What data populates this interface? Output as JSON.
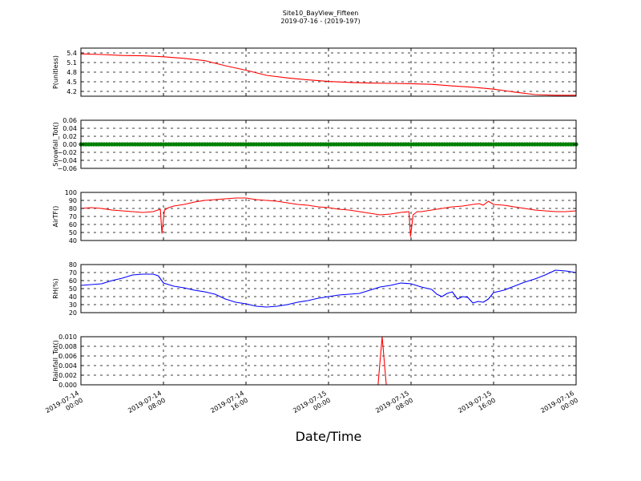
{
  "figure": {
    "title": "Site10_BayView_Fifteen",
    "subtitle": "2019-07-16 - (2019-197)",
    "xlabel": "Date/Time"
  },
  "chart_data": [
    {
      "type": "line",
      "ylabel": "P(unitless)",
      "ylim": [
        4.05,
        5.55
      ],
      "yticks": [
        "5.4",
        "5.1",
        "4.8",
        "4.5",
        "4.2"
      ],
      "ytick_values": [
        5.4,
        5.1,
        4.8,
        4.5,
        4.2
      ],
      "grid": true,
      "series": [
        {
          "color": "#ff0000",
          "x": [
            0,
            2,
            4,
            6,
            8,
            10,
            12,
            14,
            16,
            18,
            20,
            22,
            24,
            26,
            28,
            30,
            32,
            34,
            36,
            38,
            40,
            42,
            44,
            46,
            48
          ],
          "y": [
            5.37,
            5.35,
            5.32,
            5.31,
            5.28,
            5.23,
            5.16,
            5.0,
            4.86,
            4.7,
            4.62,
            4.56,
            4.51,
            4.48,
            4.46,
            4.45,
            4.44,
            4.42,
            4.37,
            4.33,
            4.27,
            4.18,
            4.1,
            4.08,
            4.08
          ]
        }
      ]
    },
    {
      "type": "scatter",
      "ylabel": "Snowfall_Tot()",
      "ylim": [
        -0.06,
        0.06
      ],
      "yticks": [
        "0.06",
        "0.04",
        "0.02",
        "0.00",
        "−0.02",
        "−0.04",
        "−0.06"
      ],
      "ytick_values": [
        0.06,
        0.04,
        0.02,
        0.0,
        -0.02,
        -0.04,
        -0.06
      ],
      "grid": true,
      "series": [
        {
          "color": "#008000",
          "x_start": 0,
          "x_end": 48,
          "x_step": 0.25,
          "value": 0.0
        }
      ]
    },
    {
      "type": "line",
      "ylabel": "AirTF()",
      "ylim": [
        40,
        100
      ],
      "yticks": [
        "100",
        "90",
        "80",
        "70",
        "60",
        "50",
        "40"
      ],
      "ytick_values": [
        100,
        90,
        80,
        70,
        60,
        50,
        40
      ],
      "grid": true,
      "series": [
        {
          "color": "#ff0000",
          "x": [
            0,
            1,
            2,
            3,
            4,
            5,
            6,
            7,
            7.7,
            7.85,
            8.1,
            8.5,
            9,
            10,
            11,
            12,
            13,
            14,
            15,
            16,
            17,
            18,
            19,
            20,
            21,
            22,
            23,
            24,
            25,
            26,
            27,
            28,
            29,
            30,
            31,
            31.8,
            31.95,
            32.2,
            32.6,
            33,
            34,
            35,
            36,
            37,
            38,
            38.6,
            39,
            39.5,
            40,
            41,
            42,
            43,
            44,
            45,
            46,
            47,
            48
          ],
          "y": [
            80,
            81,
            80,
            78,
            77,
            76,
            75,
            76,
            79,
            49,
            78,
            81,
            83,
            85,
            88,
            90,
            91,
            92,
            93,
            93,
            91,
            90,
            89,
            87,
            85,
            84,
            82,
            81,
            79,
            78,
            76,
            74,
            72,
            73,
            75,
            76,
            45,
            72,
            76,
            76,
            78,
            80,
            82,
            83,
            85,
            86,
            84,
            89,
            85,
            84,
            82,
            80,
            78,
            77,
            76,
            76,
            77
          ]
        }
      ]
    },
    {
      "type": "line",
      "ylabel": "RH(%)",
      "ylim": [
        20,
        80
      ],
      "yticks": [
        "80",
        "70",
        "60",
        "50",
        "40",
        "30",
        "20"
      ],
      "ytick_values": [
        80,
        70,
        60,
        50,
        40,
        30,
        20
      ],
      "grid": true,
      "series": [
        {
          "color": "#0000ff",
          "x": [
            0,
            1,
            2,
            3,
            4,
            5,
            6,
            7,
            7.5,
            8,
            9,
            10,
            11,
            12,
            13,
            14,
            15,
            16,
            17,
            18,
            19,
            20,
            21,
            22,
            23,
            24,
            25,
            26,
            27,
            28,
            29,
            30,
            31,
            32,
            33,
            34,
            34.5,
            35,
            35.5,
            36,
            36.5,
            37,
            37.5,
            38,
            38.5,
            39,
            39.5,
            40,
            41,
            42,
            43,
            44,
            45,
            46,
            47,
            48
          ],
          "y": [
            54,
            55,
            56,
            60,
            63,
            67,
            68,
            68,
            66,
            57,
            53,
            51,
            48,
            46,
            43,
            37,
            33,
            31,
            28,
            27,
            28,
            30,
            33,
            35,
            38,
            40,
            42,
            43,
            44,
            48,
            52,
            54,
            57,
            56,
            52,
            49,
            43,
            40,
            44,
            46,
            37,
            40,
            39,
            32,
            34,
            33,
            37,
            45,
            48,
            53,
            58,
            62,
            67,
            73,
            72,
            70
          ]
        }
      ]
    },
    {
      "type": "line",
      "ylabel": "Rainfall_Tot()",
      "ylim": [
        0,
        0.01
      ],
      "yticks": [
        "0.010",
        "0.008",
        "0.006",
        "0.004",
        "0.002",
        "0.000"
      ],
      "ytick_values": [
        0.01,
        0.008,
        0.006,
        0.004,
        0.002,
        0.0
      ],
      "grid": true,
      "series": [
        {
          "color": "#ff0000",
          "x": [
            0,
            28.8,
            29.2,
            29.6,
            30,
            48
          ],
          "y": [
            0,
            0,
            0.01,
            0,
            0,
            0
          ]
        }
      ]
    }
  ],
  "x_axis": {
    "range": [
      "2019-07-14 00:00",
      "2019-07-16 00:00"
    ],
    "tick_labels": [
      [
        "2019-07-14",
        "00:00"
      ],
      [
        "2019-07-14",
        "08:00"
      ],
      [
        "2019-07-14",
        "16:00"
      ],
      [
        "2019-07-15",
        "00:00"
      ],
      [
        "2019-07-15",
        "08:00"
      ],
      [
        "2019-07-15",
        "16:00"
      ],
      [
        "2019-07-16",
        "00:00"
      ]
    ]
  }
}
